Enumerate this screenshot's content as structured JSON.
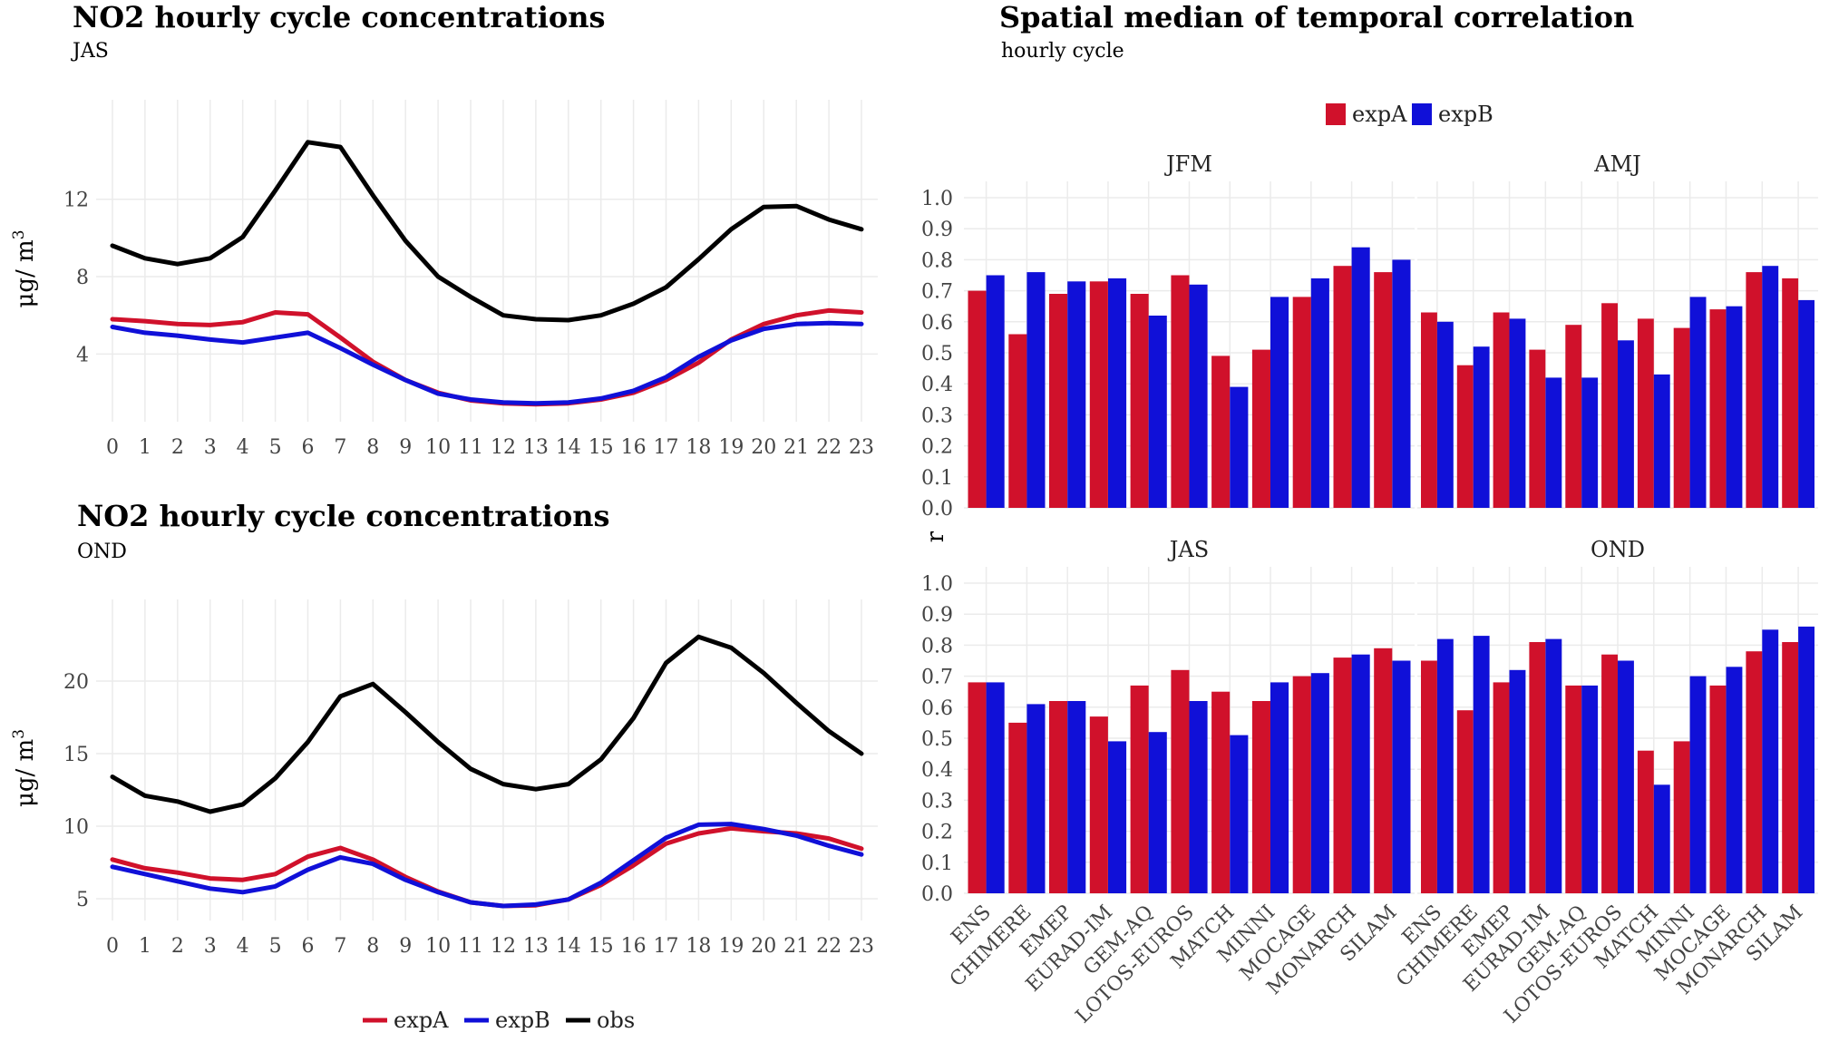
{
  "chart_data": [
    {
      "id": "line-jas",
      "type": "line",
      "title": "NO2 hourly cycle concentrations",
      "subtitle": "JAS",
      "ylabel": "μg/ m3",
      "xlabel": "",
      "x": [
        0,
        1,
        2,
        3,
        4,
        5,
        6,
        7,
        8,
        9,
        10,
        11,
        12,
        13,
        14,
        15,
        16,
        17,
        18,
        19,
        20,
        21,
        22,
        23
      ],
      "yticks": [
        4,
        8,
        12
      ],
      "ylim": [
        0.5,
        16.3
      ],
      "series": [
        {
          "name": "expA",
          "color": "#d0112b",
          "values": [
            5.8,
            5.7,
            5.55,
            5.5,
            5.65,
            6.15,
            6.05,
            4.85,
            3.6,
            2.65,
            2.0,
            1.6,
            1.45,
            1.4,
            1.45,
            1.65,
            2.0,
            2.65,
            3.55,
            4.75,
            5.55,
            6.0,
            6.25,
            6.15
          ]
        },
        {
          "name": "expB",
          "color": "#1010d8",
          "values": [
            5.4,
            5.1,
            4.95,
            4.75,
            4.6,
            4.85,
            5.1,
            4.3,
            3.45,
            2.65,
            1.95,
            1.65,
            1.5,
            1.45,
            1.5,
            1.7,
            2.1,
            2.8,
            3.85,
            4.7,
            5.3,
            5.55,
            5.6,
            5.55
          ]
        },
        {
          "name": "obs",
          "color": "#000000",
          "values": [
            9.6,
            8.95,
            8.65,
            8.95,
            10.05,
            12.45,
            14.95,
            14.7,
            12.2,
            9.85,
            8.0,
            6.95,
            6.0,
            5.8,
            5.75,
            6.0,
            6.6,
            7.45,
            8.9,
            10.45,
            11.6,
            11.65,
            10.95,
            10.45
          ]
        }
      ]
    },
    {
      "id": "line-ond",
      "type": "line",
      "title": "NO2 hourly cycle concentrations",
      "subtitle": "OND",
      "ylabel": "μg/ m3",
      "xlabel": "",
      "x": [
        0,
        1,
        2,
        3,
        4,
        5,
        6,
        7,
        8,
        9,
        10,
        11,
        12,
        13,
        14,
        15,
        16,
        17,
        18,
        19,
        20,
        21,
        22,
        23
      ],
      "yticks": [
        5,
        10,
        15,
        20
      ],
      "ylim": [
        3.5,
        24.5
      ],
      "series": [
        {
          "name": "expA",
          "color": "#d0112b",
          "values": [
            7.7,
            7.1,
            6.8,
            6.4,
            6.3,
            6.7,
            7.9,
            8.5,
            7.7,
            6.5,
            5.5,
            4.75,
            4.5,
            4.55,
            4.95,
            5.95,
            7.3,
            8.8,
            9.5,
            9.85,
            9.65,
            9.5,
            9.15,
            8.45
          ]
        },
        {
          "name": "expB",
          "color": "#1010d8",
          "values": [
            7.2,
            6.7,
            6.2,
            5.7,
            5.45,
            5.85,
            7.0,
            7.85,
            7.4,
            6.3,
            5.45,
            4.75,
            4.5,
            4.6,
            4.95,
            6.1,
            7.65,
            9.2,
            10.1,
            10.15,
            9.8,
            9.35,
            8.65,
            8.05
          ]
        },
        {
          "name": "obs",
          "color": "#000000",
          "values": [
            13.4,
            12.1,
            11.7,
            11.0,
            11.5,
            13.3,
            15.8,
            18.95,
            19.8,
            17.85,
            15.8,
            13.95,
            12.9,
            12.55,
            12.9,
            14.6,
            17.45,
            21.25,
            23.05,
            22.3,
            20.55,
            18.5,
            16.55,
            15.0
          ]
        }
      ]
    },
    {
      "id": "bars-correlation",
      "type": "bar",
      "title": "Spatial median of temporal correlation",
      "subtitle": "hourly cycle",
      "ylabel": "r",
      "ylim": [
        0,
        1.0
      ],
      "yticks": [
        "0.0",
        "0.1",
        "0.2",
        "0.3",
        "0.4",
        "0.5",
        "0.6",
        "0.7",
        "0.8",
        "0.9",
        "1.0"
      ],
      "categories": [
        "ENS",
        "CHIMERE",
        "EMEP",
        "EURAD-IM",
        "GEM-AQ",
        "LOTOS-EUROS",
        "MATCH",
        "MINNI",
        "MOCAGE",
        "MONARCH",
        "SILAM"
      ],
      "legend": [
        {
          "name": "expA",
          "color": "#d0112b"
        },
        {
          "name": "expB",
          "color": "#1010d8"
        }
      ],
      "panels": [
        {
          "label": "JFM",
          "series": [
            {
              "name": "expA",
              "values": [
                0.7,
                0.56,
                0.69,
                0.73,
                0.69,
                0.75,
                0.49,
                0.51,
                0.68,
                0.78,
                0.76
              ]
            },
            {
              "name": "expB",
              "values": [
                0.75,
                0.76,
                0.73,
                0.74,
                0.62,
                0.72,
                0.39,
                0.68,
                0.74,
                0.84,
                0.8
              ]
            }
          ]
        },
        {
          "label": "AMJ",
          "series": [
            {
              "name": "expA",
              "values": [
                0.63,
                0.46,
                0.63,
                0.51,
                0.59,
                0.66,
                0.61,
                0.58,
                0.64,
                0.76,
                0.74
              ]
            },
            {
              "name": "expB",
              "values": [
                0.6,
                0.52,
                0.61,
                0.42,
                0.42,
                0.54,
                0.43,
                0.68,
                0.65,
                0.78,
                0.67
              ]
            }
          ]
        },
        {
          "label": "JAS",
          "series": [
            {
              "name": "expA",
              "values": [
                0.68,
                0.55,
                0.62,
                0.57,
                0.67,
                0.72,
                0.65,
                0.62,
                0.7,
                0.76,
                0.79
              ]
            },
            {
              "name": "expB",
              "values": [
                0.68,
                0.61,
                0.62,
                0.49,
                0.52,
                0.62,
                0.51,
                0.68,
                0.71,
                0.77,
                0.75
              ]
            }
          ]
        },
        {
          "label": "OND",
          "series": [
            {
              "name": "expA",
              "values": [
                0.75,
                0.59,
                0.68,
                0.81,
                0.67,
                0.77,
                0.46,
                0.49,
                0.67,
                0.78,
                0.81
              ]
            },
            {
              "name": "expB",
              "values": [
                0.82,
                0.83,
                0.72,
                0.82,
                0.67,
                0.75,
                0.35,
                0.7,
                0.73,
                0.85,
                0.86
              ]
            }
          ]
        }
      ]
    }
  ],
  "line_legend": [
    {
      "name": "expA",
      "color": "#d0112b"
    },
    {
      "name": "expB",
      "color": "#1010d8"
    },
    {
      "name": "obs",
      "color": "#000000"
    }
  ]
}
